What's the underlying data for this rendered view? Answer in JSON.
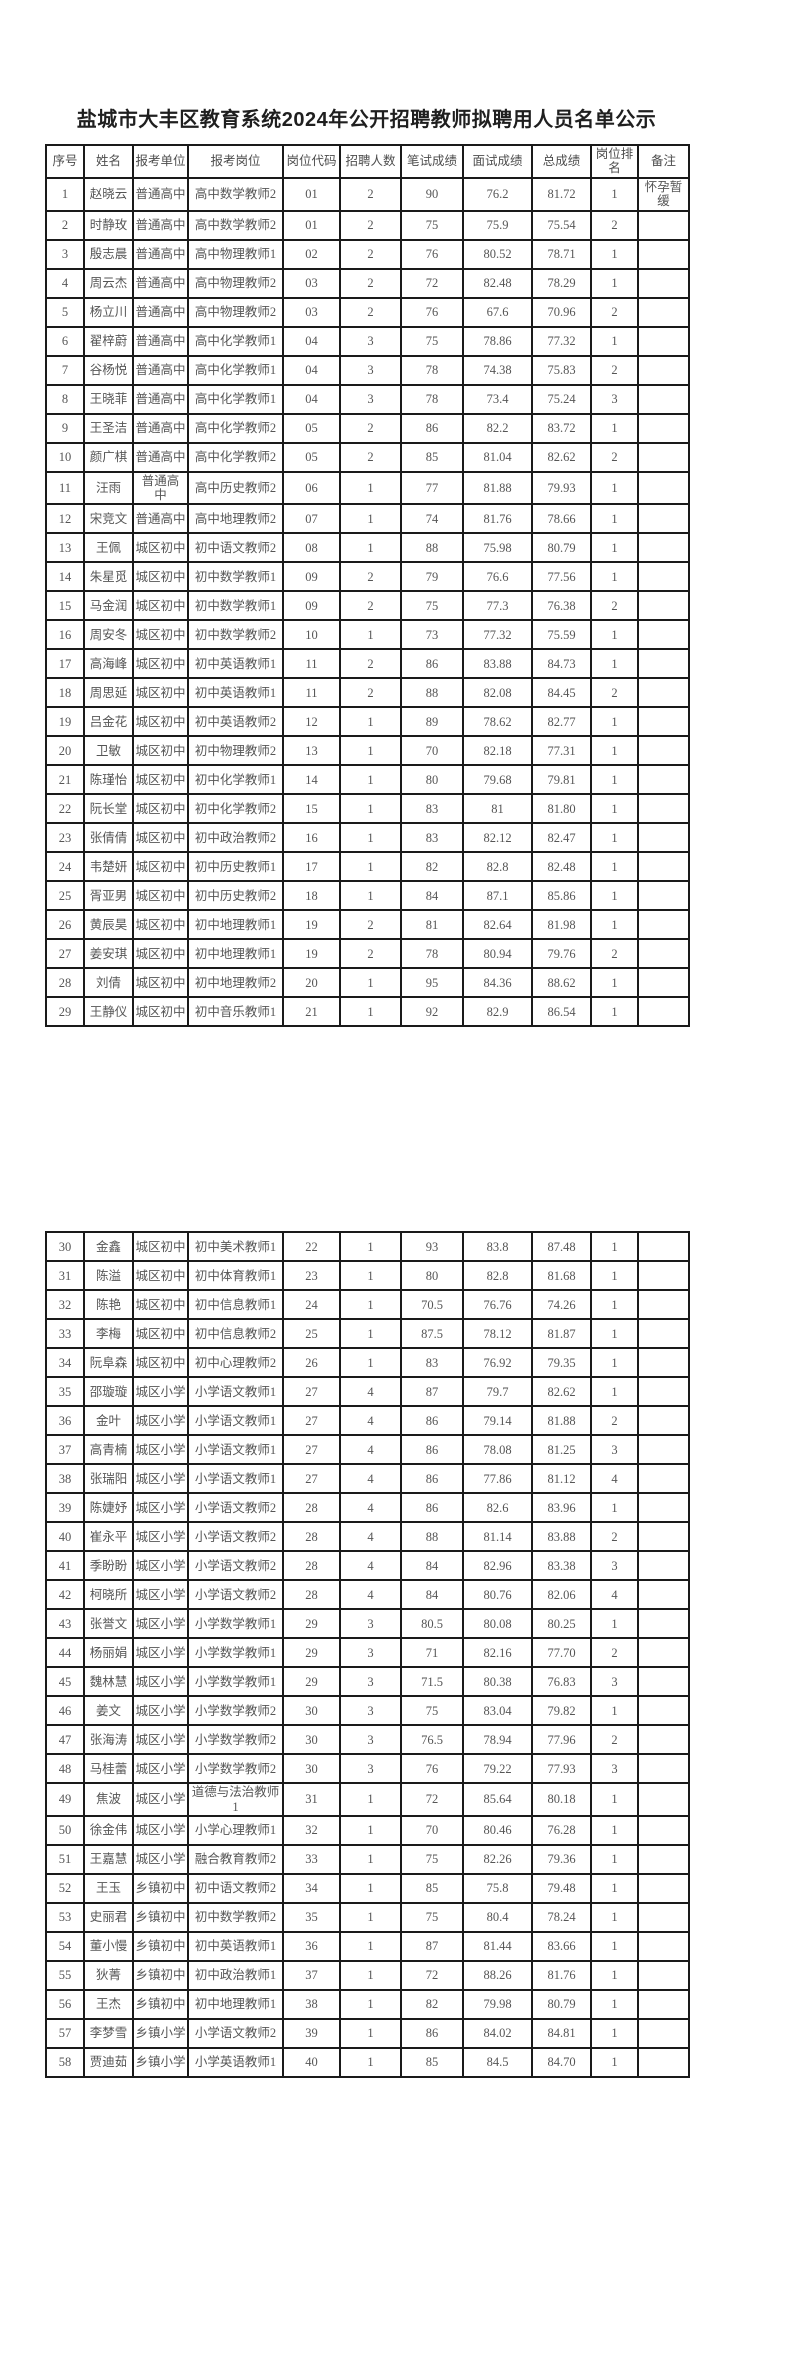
{
  "page": {
    "title": "盐城市大丰区教育系统2024年公开招聘教师拟聘用人员名单公示"
  },
  "colors": {
    "background": "#ffffff",
    "border": "#1a1a1a",
    "title_text": "#1f1f1f",
    "cell_text": "#565656"
  },
  "column_headers": [
    "序号",
    "姓名",
    "报考单位",
    "报考岗位",
    "岗位代码",
    "招聘人数",
    "笔试成绩",
    "面试成绩",
    "总成绩",
    "岗位排名",
    "备注"
  ],
  "tables": [
    {
      "name": "rows-1-29",
      "show_header": true,
      "rows": [
        [
          "1",
          "赵晓云",
          "普通高中",
          "高中数学教师2",
          "01",
          "2",
          "90",
          "76.2",
          "81.72",
          "1",
          "怀孕暂缓"
        ],
        [
          "2",
          "时静玫",
          "普通高中",
          "高中数学教师2",
          "01",
          "2",
          "75",
          "75.9",
          "75.54",
          "2",
          ""
        ],
        [
          "3",
          "殷志晨",
          "普通高中",
          "高中物理教师1",
          "02",
          "2",
          "76",
          "80.52",
          "78.71",
          "1",
          ""
        ],
        [
          "4",
          "周云杰",
          "普通高中",
          "高中物理教师2",
          "03",
          "2",
          "72",
          "82.48",
          "78.29",
          "1",
          ""
        ],
        [
          "5",
          "杨立川",
          "普通高中",
          "高中物理教师2",
          "03",
          "2",
          "76",
          "67.6",
          "70.96",
          "2",
          ""
        ],
        [
          "6",
          "翟梓蔚",
          "普通高中",
          "高中化学教师1",
          "04",
          "3",
          "75",
          "78.86",
          "77.32",
          "1",
          ""
        ],
        [
          "7",
          "谷杨悦",
          "普通高中",
          "高中化学教师1",
          "04",
          "3",
          "78",
          "74.38",
          "75.83",
          "2",
          ""
        ],
        [
          "8",
          "王晓菲",
          "普通高中",
          "高中化学教师1",
          "04",
          "3",
          "78",
          "73.4",
          "75.24",
          "3",
          ""
        ],
        [
          "9",
          "王圣洁",
          "普通高中",
          "高中化学教师2",
          "05",
          "2",
          "86",
          "82.2",
          "83.72",
          "1",
          ""
        ],
        [
          "10",
          "颜广棋",
          "普通高中",
          "高中化学教师2",
          "05",
          "2",
          "85",
          "81.04",
          "82.62",
          "2",
          ""
        ],
        [
          "11",
          "汪雨",
          "普通高\n中",
          "高中历史教师2",
          "06",
          "1",
          "77",
          "81.88",
          "79.93",
          "1",
          ""
        ],
        [
          "12",
          "宋竞文",
          "普通高中",
          "高中地理教师2",
          "07",
          "1",
          "74",
          "81.76",
          "78.66",
          "1",
          ""
        ],
        [
          "13",
          "王佩",
          "城区初中",
          "初中语文教师2",
          "08",
          "1",
          "88",
          "75.98",
          "80.79",
          "1",
          ""
        ],
        [
          "14",
          "朱星觅",
          "城区初中",
          "初中数学教师1",
          "09",
          "2",
          "79",
          "76.6",
          "77.56",
          "1",
          ""
        ],
        [
          "15",
          "马金润",
          "城区初中",
          "初中数学教师1",
          "09",
          "2",
          "75",
          "77.3",
          "76.38",
          "2",
          ""
        ],
        [
          "16",
          "周安冬",
          "城区初中",
          "初中数学教师2",
          "10",
          "1",
          "73",
          "77.32",
          "75.59",
          "1",
          ""
        ],
        [
          "17",
          "高海峰",
          "城区初中",
          "初中英语教师1",
          "11",
          "2",
          "86",
          "83.88",
          "84.73",
          "1",
          ""
        ],
        [
          "18",
          "周思延",
          "城区初中",
          "初中英语教师1",
          "11",
          "2",
          "88",
          "82.08",
          "84.45",
          "2",
          ""
        ],
        [
          "19",
          "吕金花",
          "城区初中",
          "初中英语教师2",
          "12",
          "1",
          "89",
          "78.62",
          "82.77",
          "1",
          ""
        ],
        [
          "20",
          "卫敏",
          "城区初中",
          "初中物理教师2",
          "13",
          "1",
          "70",
          "82.18",
          "77.31",
          "1",
          ""
        ],
        [
          "21",
          "陈瑾怡",
          "城区初中",
          "初中化学教师1",
          "14",
          "1",
          "80",
          "79.68",
          "79.81",
          "1",
          ""
        ],
        [
          "22",
          "阮长堂",
          "城区初中",
          "初中化学教师2",
          "15",
          "1",
          "83",
          "81",
          "81.80",
          "1",
          ""
        ],
        [
          "23",
          "张倩倩",
          "城区初中",
          "初中政治教师2",
          "16",
          "1",
          "83",
          "82.12",
          "82.47",
          "1",
          ""
        ],
        [
          "24",
          "韦楚妍",
          "城区初中",
          "初中历史教师1",
          "17",
          "1",
          "82",
          "82.8",
          "82.48",
          "1",
          ""
        ],
        [
          "25",
          "胥亚男",
          "城区初中",
          "初中历史教师2",
          "18",
          "1",
          "84",
          "87.1",
          "85.86",
          "1",
          ""
        ],
        [
          "26",
          "黄辰昊",
          "城区初中",
          "初中地理教师1",
          "19",
          "2",
          "81",
          "82.64",
          "81.98",
          "1",
          ""
        ],
        [
          "27",
          "姜安琪",
          "城区初中",
          "初中地理教师1",
          "19",
          "2",
          "78",
          "80.94",
          "79.76",
          "2",
          ""
        ],
        [
          "28",
          "刘倩",
          "城区初中",
          "初中地理教师2",
          "20",
          "1",
          "95",
          "84.36",
          "88.62",
          "1",
          ""
        ],
        [
          "29",
          "王静仪",
          "城区初中",
          "初中音乐教师1",
          "21",
          "1",
          "92",
          "82.9",
          "86.54",
          "1",
          ""
        ]
      ]
    },
    {
      "name": "rows-30-58",
      "show_header": false,
      "rows": [
        [
          "30",
          "金鑫",
          "城区初中",
          "初中美术教师1",
          "22",
          "1",
          "93",
          "83.8",
          "87.48",
          "1",
          ""
        ],
        [
          "31",
          "陈溢",
          "城区初中",
          "初中体育教师1",
          "23",
          "1",
          "80",
          "82.8",
          "81.68",
          "1",
          ""
        ],
        [
          "32",
          "陈艳",
          "城区初中",
          "初中信息教师1",
          "24",
          "1",
          "70.5",
          "76.76",
          "74.26",
          "1",
          ""
        ],
        [
          "33",
          "李梅",
          "城区初中",
          "初中信息教师2",
          "25",
          "1",
          "87.5",
          "78.12",
          "81.87",
          "1",
          ""
        ],
        [
          "34",
          "阮阜森",
          "城区初中",
          "初中心理教师2",
          "26",
          "1",
          "83",
          "76.92",
          "79.35",
          "1",
          ""
        ],
        [
          "35",
          "邵璇璇",
          "城区小学",
          "小学语文教师1",
          "27",
          "4",
          "87",
          "79.7",
          "82.62",
          "1",
          ""
        ],
        [
          "36",
          "金叶",
          "城区小学",
          "小学语文教师1",
          "27",
          "4",
          "86",
          "79.14",
          "81.88",
          "2",
          ""
        ],
        [
          "37",
          "高青楠",
          "城区小学",
          "小学语文教师1",
          "27",
          "4",
          "86",
          "78.08",
          "81.25",
          "3",
          ""
        ],
        [
          "38",
          "张瑞阳",
          "城区小学",
          "小学语文教师1",
          "27",
          "4",
          "86",
          "77.86",
          "81.12",
          "4",
          ""
        ],
        [
          "39",
          "陈婕妤",
          "城区小学",
          "小学语文教师2",
          "28",
          "4",
          "86",
          "82.6",
          "83.96",
          "1",
          ""
        ],
        [
          "40",
          "崔永平",
          "城区小学",
          "小学语文教师2",
          "28",
          "4",
          "88",
          "81.14",
          "83.88",
          "2",
          ""
        ],
        [
          "41",
          "季盼盼",
          "城区小学",
          "小学语文教师2",
          "28",
          "4",
          "84",
          "82.96",
          "83.38",
          "3",
          ""
        ],
        [
          "42",
          "柯晓所",
          "城区小学",
          "小学语文教师2",
          "28",
          "4",
          "84",
          "80.76",
          "82.06",
          "4",
          ""
        ],
        [
          "43",
          "张誉文",
          "城区小学",
          "小学数学教师1",
          "29",
          "3",
          "80.5",
          "80.08",
          "80.25",
          "1",
          ""
        ],
        [
          "44",
          "杨丽娟",
          "城区小学",
          "小学数学教师1",
          "29",
          "3",
          "71",
          "82.16",
          "77.70",
          "2",
          ""
        ],
        [
          "45",
          "魏林慧",
          "城区小学",
          "小学数学教师1",
          "29",
          "3",
          "71.5",
          "80.38",
          "76.83",
          "3",
          ""
        ],
        [
          "46",
          "姜文",
          "城区小学",
          "小学数学教师2",
          "30",
          "3",
          "75",
          "83.04",
          "79.82",
          "1",
          ""
        ],
        [
          "47",
          "张海涛",
          "城区小学",
          "小学数学教师2",
          "30",
          "3",
          "76.5",
          "78.94",
          "77.96",
          "2",
          ""
        ],
        [
          "48",
          "马桂蕾",
          "城区小学",
          "小学数学教师2",
          "30",
          "3",
          "76",
          "79.22",
          "77.93",
          "3",
          ""
        ],
        [
          "49",
          "焦波",
          "城区小学",
          "道德与法治教师\n1",
          "31",
          "1",
          "72",
          "85.64",
          "80.18",
          "1",
          ""
        ],
        [
          "50",
          "徐金伟",
          "城区小学",
          "小学心理教师1",
          "32",
          "1",
          "70",
          "80.46",
          "76.28",
          "1",
          ""
        ],
        [
          "51",
          "王嘉慧",
          "城区小学",
          "融合教育教师2",
          "33",
          "1",
          "75",
          "82.26",
          "79.36",
          "1",
          ""
        ],
        [
          "52",
          "王玉",
          "乡镇初中",
          "初中语文教师2",
          "34",
          "1",
          "85",
          "75.8",
          "79.48",
          "1",
          ""
        ],
        [
          "53",
          "史丽君",
          "乡镇初中",
          "初中数学教师2",
          "35",
          "1",
          "75",
          "80.4",
          "78.24",
          "1",
          ""
        ],
        [
          "54",
          "董小慢",
          "乡镇初中",
          "初中英语教师1",
          "36",
          "1",
          "87",
          "81.44",
          "83.66",
          "1",
          ""
        ],
        [
          "55",
          "狄菁",
          "乡镇初中",
          "初中政治教师1",
          "37",
          "1",
          "72",
          "88.26",
          "81.76",
          "1",
          ""
        ],
        [
          "56",
          "王杰",
          "乡镇初中",
          "初中地理教师1",
          "38",
          "1",
          "82",
          "79.98",
          "80.79",
          "1",
          ""
        ],
        [
          "57",
          "李梦雪",
          "乡镇小学",
          "小学语文教师2",
          "39",
          "1",
          "86",
          "84.02",
          "84.81",
          "1",
          ""
        ],
        [
          "58",
          "贾迪茹",
          "乡镇小学",
          "小学英语教师1",
          "40",
          "1",
          "85",
          "84.5",
          "84.70",
          "1",
          ""
        ]
      ]
    }
  ]
}
